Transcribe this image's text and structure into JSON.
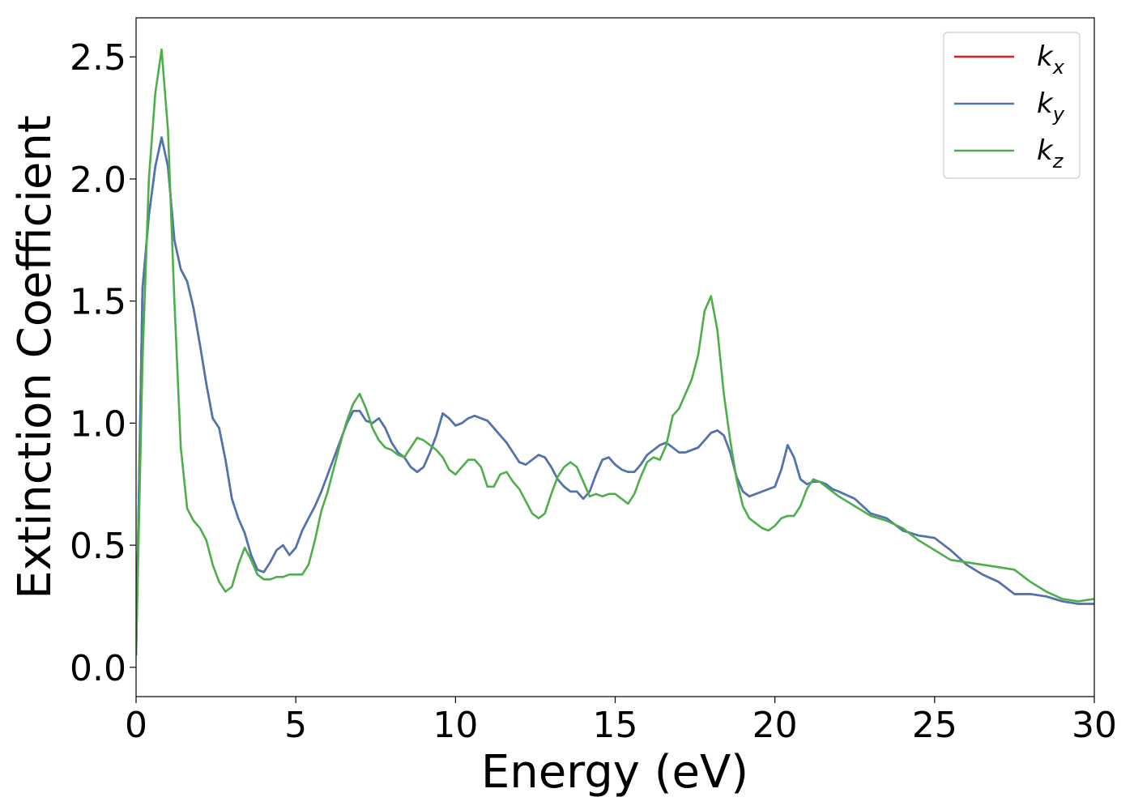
{
  "chart_data": {
    "type": "line",
    "xlabel": "Energy (eV)",
    "ylabel": "Extinction Coefficient",
    "xlim": [
      0,
      30
    ],
    "ylim": [
      -0.12,
      2.66
    ],
    "xticks": [
      0,
      5,
      10,
      15,
      20,
      25,
      30
    ],
    "xtick_labels": [
      "0",
      "5",
      "10",
      "15",
      "20",
      "25",
      "30"
    ],
    "yticks": [
      0.0,
      0.5,
      1.0,
      1.5,
      2.0,
      2.5
    ],
    "ytick_labels": [
      "0.0",
      "0.5",
      "1.0",
      "1.5",
      "2.0",
      "2.5"
    ],
    "grid": false,
    "legend_position": "top-right",
    "series": [
      {
        "name": "k",
        "subscript": "x",
        "color": "#e41a1c",
        "x": [
          0,
          0.2,
          0.4,
          0.6,
          0.8,
          1.0,
          1.2,
          1.4,
          1.6,
          1.8,
          2.0,
          2.2,
          2.4,
          2.6,
          2.8,
          3.0,
          3.2,
          3.4,
          3.6,
          3.8,
          4.0,
          4.2,
          4.4,
          4.6,
          4.8,
          5.0,
          5.2,
          5.4,
          5.6,
          5.8,
          6.0,
          6.2,
          6.4,
          6.6,
          6.8,
          7.0,
          7.2,
          7.4,
          7.6,
          7.8,
          8.0,
          8.2,
          8.4,
          8.6,
          8.8,
          9.0,
          9.2,
          9.4,
          9.6,
          9.8,
          10.0,
          10.2,
          10.4,
          10.6,
          10.8,
          11.0,
          11.2,
          11.4,
          11.6,
          11.8,
          12.0,
          12.2,
          12.4,
          12.6,
          12.8,
          13.0,
          13.2,
          13.4,
          13.6,
          13.8,
          14.0,
          14.2,
          14.4,
          14.6,
          14.8,
          15.0,
          15.2,
          15.4,
          15.6,
          15.8,
          16.0,
          16.2,
          16.4,
          16.6,
          16.8,
          17.0,
          17.2,
          17.4,
          17.6,
          17.8,
          18.0,
          18.2,
          18.4,
          18.6,
          18.8,
          19.0,
          19.2,
          19.4,
          19.6,
          19.8,
          20.0,
          20.2,
          20.4,
          20.6,
          20.8,
          21.0,
          21.2,
          21.4,
          21.6,
          21.8,
          22.0,
          22.5,
          23.0,
          23.5,
          24.0,
          24.5,
          25.0,
          25.5,
          26.0,
          26.5,
          27.0,
          27.5,
          28.0,
          28.5,
          29.0,
          29.5,
          30.0
        ],
        "y": [
          0.05,
          1.55,
          1.85,
          2.05,
          2.17,
          2.05,
          1.75,
          1.63,
          1.58,
          1.47,
          1.32,
          1.16,
          1.02,
          0.98,
          0.85,
          0.69,
          0.61,
          0.55,
          0.46,
          0.4,
          0.39,
          0.43,
          0.48,
          0.5,
          0.46,
          0.49,
          0.56,
          0.61,
          0.66,
          0.72,
          0.79,
          0.86,
          0.93,
          1.0,
          1.05,
          1.05,
          1.01,
          1.0,
          1.02,
          0.98,
          0.92,
          0.88,
          0.86,
          0.82,
          0.8,
          0.82,
          0.88,
          0.95,
          1.04,
          1.02,
          0.99,
          1.0,
          1.02,
          1.03,
          1.02,
          1.01,
          0.98,
          0.95,
          0.92,
          0.88,
          0.84,
          0.83,
          0.85,
          0.87,
          0.86,
          0.82,
          0.77,
          0.74,
          0.72,
          0.72,
          0.69,
          0.72,
          0.79,
          0.85,
          0.86,
          0.83,
          0.81,
          0.8,
          0.8,
          0.83,
          0.87,
          0.89,
          0.91,
          0.92,
          0.9,
          0.88,
          0.88,
          0.89,
          0.9,
          0.93,
          0.96,
          0.97,
          0.95,
          0.88,
          0.78,
          0.72,
          0.7,
          0.71,
          0.72,
          0.73,
          0.74,
          0.81,
          0.91,
          0.86,
          0.77,
          0.75,
          0.76,
          0.76,
          0.75,
          0.73,
          0.72,
          0.69,
          0.63,
          0.61,
          0.56,
          0.54,
          0.53,
          0.48,
          0.42,
          0.38,
          0.35,
          0.3,
          0.3,
          0.29,
          0.27,
          0.26,
          0.26
        ]
      },
      {
        "name": "k",
        "subscript": "y",
        "color": "#4a77b4",
        "x": [
          0,
          0.2,
          0.4,
          0.6,
          0.8,
          1.0,
          1.2,
          1.4,
          1.6,
          1.8,
          2.0,
          2.2,
          2.4,
          2.6,
          2.8,
          3.0,
          3.2,
          3.4,
          3.6,
          3.8,
          4.0,
          4.2,
          4.4,
          4.6,
          4.8,
          5.0,
          5.2,
          5.4,
          5.6,
          5.8,
          6.0,
          6.2,
          6.4,
          6.6,
          6.8,
          7.0,
          7.2,
          7.4,
          7.6,
          7.8,
          8.0,
          8.2,
          8.4,
          8.6,
          8.8,
          9.0,
          9.2,
          9.4,
          9.6,
          9.8,
          10.0,
          10.2,
          10.4,
          10.6,
          10.8,
          11.0,
          11.2,
          11.4,
          11.6,
          11.8,
          12.0,
          12.2,
          12.4,
          12.6,
          12.8,
          13.0,
          13.2,
          13.4,
          13.6,
          13.8,
          14.0,
          14.2,
          14.4,
          14.6,
          14.8,
          15.0,
          15.2,
          15.4,
          15.6,
          15.8,
          16.0,
          16.2,
          16.4,
          16.6,
          16.8,
          17.0,
          17.2,
          17.4,
          17.6,
          17.8,
          18.0,
          18.2,
          18.4,
          18.6,
          18.8,
          19.0,
          19.2,
          19.4,
          19.6,
          19.8,
          20.0,
          20.2,
          20.4,
          20.6,
          20.8,
          21.0,
          21.2,
          21.4,
          21.6,
          21.8,
          22.0,
          22.5,
          23.0,
          23.5,
          24.0,
          24.5,
          25.0,
          25.5,
          26.0,
          26.5,
          27.0,
          27.5,
          28.0,
          28.5,
          29.0,
          29.5,
          30.0
        ],
        "y": [
          0.05,
          1.55,
          1.85,
          2.05,
          2.17,
          2.05,
          1.75,
          1.63,
          1.58,
          1.47,
          1.32,
          1.16,
          1.02,
          0.98,
          0.85,
          0.69,
          0.61,
          0.55,
          0.46,
          0.4,
          0.39,
          0.43,
          0.48,
          0.5,
          0.46,
          0.49,
          0.56,
          0.61,
          0.66,
          0.72,
          0.79,
          0.86,
          0.93,
          1.0,
          1.05,
          1.05,
          1.01,
          1.0,
          1.02,
          0.98,
          0.92,
          0.88,
          0.86,
          0.82,
          0.8,
          0.82,
          0.88,
          0.95,
          1.04,
          1.02,
          0.99,
          1.0,
          1.02,
          1.03,
          1.02,
          1.01,
          0.98,
          0.95,
          0.92,
          0.88,
          0.84,
          0.83,
          0.85,
          0.87,
          0.86,
          0.82,
          0.77,
          0.74,
          0.72,
          0.72,
          0.69,
          0.72,
          0.79,
          0.85,
          0.86,
          0.83,
          0.81,
          0.8,
          0.8,
          0.83,
          0.87,
          0.89,
          0.91,
          0.92,
          0.9,
          0.88,
          0.88,
          0.89,
          0.9,
          0.93,
          0.96,
          0.97,
          0.95,
          0.88,
          0.78,
          0.72,
          0.7,
          0.71,
          0.72,
          0.73,
          0.74,
          0.81,
          0.91,
          0.86,
          0.77,
          0.75,
          0.76,
          0.76,
          0.75,
          0.73,
          0.72,
          0.69,
          0.63,
          0.61,
          0.56,
          0.54,
          0.53,
          0.48,
          0.42,
          0.38,
          0.35,
          0.3,
          0.3,
          0.29,
          0.27,
          0.26,
          0.26
        ]
      },
      {
        "name": "k",
        "subscript": "z",
        "color": "#4daf4a",
        "x": [
          0,
          0.2,
          0.4,
          0.6,
          0.8,
          1.0,
          1.2,
          1.4,
          1.6,
          1.8,
          2.0,
          2.2,
          2.4,
          2.6,
          2.8,
          3.0,
          3.2,
          3.4,
          3.6,
          3.8,
          4.0,
          4.2,
          4.4,
          4.6,
          4.8,
          5.0,
          5.2,
          5.4,
          5.6,
          5.8,
          6.0,
          6.2,
          6.4,
          6.6,
          6.8,
          7.0,
          7.2,
          7.4,
          7.6,
          7.8,
          8.0,
          8.2,
          8.4,
          8.6,
          8.8,
          9.0,
          9.2,
          9.4,
          9.6,
          9.8,
          10.0,
          10.2,
          10.4,
          10.6,
          10.8,
          11.0,
          11.2,
          11.4,
          11.6,
          11.8,
          12.0,
          12.2,
          12.4,
          12.6,
          12.8,
          13.0,
          13.2,
          13.4,
          13.6,
          13.8,
          14.0,
          14.2,
          14.4,
          14.6,
          14.8,
          15.0,
          15.2,
          15.4,
          15.6,
          15.8,
          16.0,
          16.2,
          16.4,
          16.6,
          16.8,
          17.0,
          17.2,
          17.4,
          17.6,
          17.8,
          18.0,
          18.2,
          18.4,
          18.6,
          18.8,
          19.0,
          19.2,
          19.4,
          19.6,
          19.8,
          20.0,
          20.2,
          20.4,
          20.6,
          20.8,
          21.0,
          21.2,
          21.4,
          21.6,
          21.8,
          22.0,
          22.5,
          23.0,
          23.5,
          24.0,
          24.5,
          25.0,
          25.5,
          26.0,
          26.5,
          27.0,
          27.5,
          28.0,
          28.5,
          29.0,
          29.5,
          30.0
        ],
        "y": [
          0.05,
          1.25,
          2.0,
          2.35,
          2.53,
          2.2,
          1.5,
          0.9,
          0.65,
          0.6,
          0.57,
          0.52,
          0.42,
          0.35,
          0.31,
          0.33,
          0.42,
          0.49,
          0.44,
          0.38,
          0.36,
          0.36,
          0.37,
          0.37,
          0.38,
          0.38,
          0.38,
          0.42,
          0.52,
          0.64,
          0.72,
          0.82,
          0.92,
          1.01,
          1.08,
          1.12,
          1.06,
          0.98,
          0.93,
          0.9,
          0.89,
          0.87,
          0.86,
          0.9,
          0.94,
          0.93,
          0.91,
          0.89,
          0.86,
          0.81,
          0.79,
          0.82,
          0.85,
          0.85,
          0.82,
          0.74,
          0.74,
          0.79,
          0.8,
          0.76,
          0.73,
          0.68,
          0.63,
          0.61,
          0.63,
          0.71,
          0.78,
          0.82,
          0.84,
          0.82,
          0.76,
          0.7,
          0.71,
          0.7,
          0.71,
          0.71,
          0.69,
          0.67,
          0.71,
          0.78,
          0.84,
          0.86,
          0.85,
          0.91,
          1.03,
          1.06,
          1.12,
          1.18,
          1.28,
          1.46,
          1.52,
          1.38,
          1.12,
          0.93,
          0.77,
          0.66,
          0.61,
          0.59,
          0.57,
          0.56,
          0.58,
          0.61,
          0.62,
          0.62,
          0.66,
          0.73,
          0.77,
          0.76,
          0.74,
          0.72,
          0.7,
          0.66,
          0.62,
          0.6,
          0.57,
          0.52,
          0.48,
          0.44,
          0.43,
          0.42,
          0.41,
          0.4,
          0.35,
          0.31,
          0.28,
          0.27,
          0.28
        ]
      }
    ]
  }
}
